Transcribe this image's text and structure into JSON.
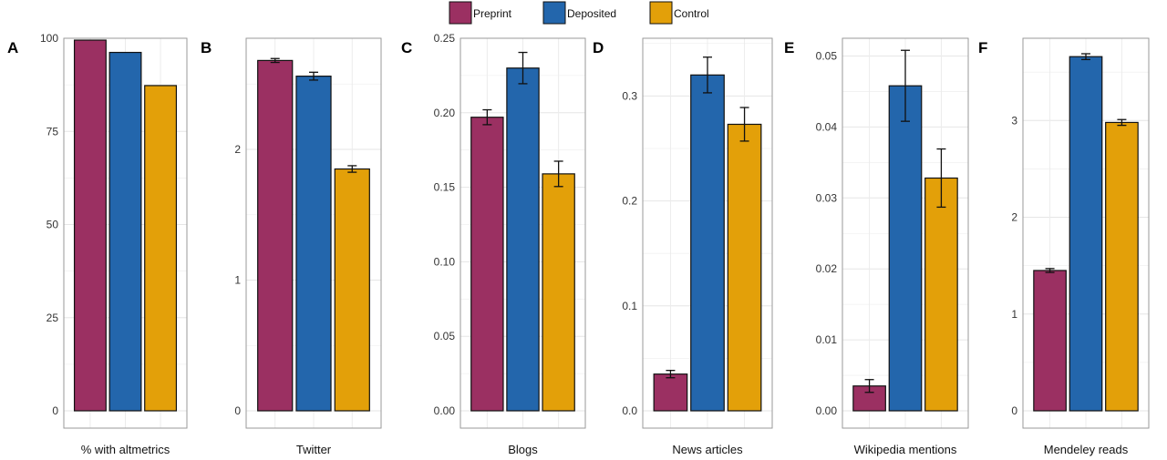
{
  "legend": {
    "position": "top-center",
    "entries": [
      {
        "name": "Preprint",
        "color": "#9B3062"
      },
      {
        "name": "Deposited",
        "color": "#2366AC"
      },
      {
        "name": "Control",
        "color": "#E3A009"
      }
    ]
  },
  "chart_data": [
    {
      "type": "bar",
      "panel": "A",
      "xlabel": "% with altmetrics",
      "ylabel": "",
      "ylim": [
        0,
        100
      ],
      "ticks": [
        0,
        25,
        50,
        75,
        100
      ],
      "grid": true,
      "series": [
        {
          "name": "Preprint",
          "value": 99.5
        },
        {
          "name": "Deposited",
          "value": 96.2
        },
        {
          "name": "Control",
          "value": 87.3
        }
      ]
    },
    {
      "type": "bar",
      "panel": "B",
      "xlabel": "Twitter",
      "ylabel": "",
      "ylim": [
        0,
        2.85
      ],
      "ticks": [
        0,
        1,
        2
      ],
      "grid": true,
      "series": [
        {
          "name": "Preprint",
          "value": 2.68,
          "err": 0.015
        },
        {
          "name": "Deposited",
          "value": 2.56,
          "err": 0.03
        },
        {
          "name": "Control",
          "value": 1.85,
          "err": 0.025
        }
      ]
    },
    {
      "type": "bar",
      "panel": "C",
      "xlabel": "Blogs",
      "ylabel": "",
      "ylim": [
        0,
        0.25
      ],
      "ticks": [
        0,
        0.05,
        0.1,
        0.15,
        0.2,
        0.25
      ],
      "tick_labels": [
        "0.00",
        "0.05",
        "0.10",
        "0.15",
        "0.20",
        "0.25"
      ],
      "grid": true,
      "series": [
        {
          "name": "Preprint",
          "value": 0.197,
          "err": 0.005
        },
        {
          "name": "Deposited",
          "value": 0.23,
          "err": 0.0105
        },
        {
          "name": "Control",
          "value": 0.159,
          "err": 0.0085
        }
      ]
    },
    {
      "type": "bar",
      "panel": "D",
      "xlabel": "News articles",
      "ylabel": "",
      "ylim": [
        0,
        0.355
      ],
      "ticks": [
        0,
        0.1,
        0.2,
        0.3
      ],
      "tick_labels": [
        "0.0",
        "0.1",
        "0.2",
        "0.3"
      ],
      "grid": true,
      "series": [
        {
          "name": "Preprint",
          "value": 0.035,
          "err": 0.0035
        },
        {
          "name": "Deposited",
          "value": 0.32,
          "err": 0.017
        },
        {
          "name": "Control",
          "value": 0.273,
          "err": 0.016
        }
      ]
    },
    {
      "type": "bar",
      "panel": "E",
      "xlabel": "Wikipedia mentions",
      "ylabel": "",
      "ylim": [
        0,
        0.0525
      ],
      "ticks": [
        0,
        0.01,
        0.02,
        0.03,
        0.04,
        0.05
      ],
      "tick_labels": [
        "0.00",
        "0.01",
        "0.02",
        "0.03",
        "0.04",
        "0.05"
      ],
      "grid": true,
      "series": [
        {
          "name": "Preprint",
          "value": 0.0035,
          "err": 0.0009
        },
        {
          "name": "Deposited",
          "value": 0.0458,
          "err": 0.005
        },
        {
          "name": "Control",
          "value": 0.0328,
          "err": 0.0041
        }
      ]
    },
    {
      "type": "bar",
      "panel": "F",
      "xlabel": "Mendeley reads",
      "ylabel": "",
      "ylim": [
        0,
        3.85
      ],
      "ticks": [
        0,
        1,
        2,
        3
      ],
      "grid": true,
      "series": [
        {
          "name": "Preprint",
          "value": 1.45,
          "err": 0.02
        },
        {
          "name": "Deposited",
          "value": 3.66,
          "err": 0.03
        },
        {
          "name": "Control",
          "value": 2.98,
          "err": 0.03
        }
      ]
    }
  ]
}
